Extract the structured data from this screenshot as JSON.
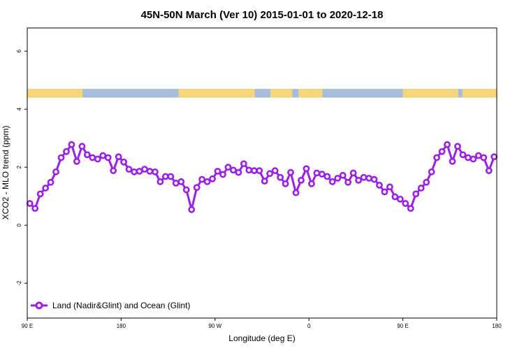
{
  "chart_data": {
    "type": "line",
    "title": "45N-50N March (Ver 10)   2015-01-01 to 2020-12-18",
    "xlabel": "Longitude (deg E)",
    "ylabel": "XCO2 - MLO trend (ppm)",
    "x_ticks": [
      {
        "value": 90,
        "label": "90 E"
      },
      {
        "value": 180,
        "label": "180"
      },
      {
        "value": 270,
        "label": "90 W"
      },
      {
        "value": 360,
        "label": "0"
      },
      {
        "value": 450,
        "label": "90 E"
      },
      {
        "value": 540,
        "label": "180"
      }
    ],
    "y_ticks": [
      {
        "value": -2,
        "label": "-2"
      },
      {
        "value": 0,
        "label": "0"
      },
      {
        "value": 2,
        "label": "2"
      },
      {
        "value": 4,
        "label": "4"
      },
      {
        "value": 6,
        "label": "6"
      }
    ],
    "xlim": [
      90,
      540
    ],
    "ylim": [
      -3.2,
      6.8
    ],
    "map_band": {
      "y_range": [
        4.4,
        4.7
      ],
      "land_color": "#f4d77a",
      "ocean_color": "#a7bcd9",
      "land_lon_ranges": [
        [
          90,
          143
        ],
        [
          235,
          308
        ],
        [
          323,
          344
        ],
        [
          350,
          360
        ],
        [
          360,
          373
        ],
        [
          450,
          503
        ],
        [
          507,
          540
        ]
      ]
    },
    "series": [
      {
        "name": "Land (Nadir&Glint) and Ocean (Glint)",
        "color": "#9a20e6",
        "x": [
          92.5,
          97.5,
          102.5,
          107.5,
          112.5,
          117.5,
          122.5,
          127.5,
          132.5,
          137.5,
          142.5,
          147.5,
          152.5,
          157.5,
          162.5,
          167.5,
          172.5,
          177.5,
          182.5,
          187.5,
          192.5,
          197.5,
          202.5,
          207.5,
          212.5,
          217.5,
          222.5,
          227.5,
          232.5,
          237.5,
          242.5,
          247.5,
          252.5,
          257.5,
          262.5,
          267.5,
          272.5,
          277.5,
          282.5,
          287.5,
          292.5,
          297.5,
          302.5,
          307.5,
          312.5,
          317.5,
          322.5,
          327.5,
          332.5,
          337.5,
          342.5,
          347.5,
          352.5,
          357.5,
          362.5,
          367.5,
          372.5,
          377.5,
          382.5,
          387.5,
          392.5,
          397.5,
          402.5,
          407.5,
          412.5,
          417.5,
          422.5,
          427.5,
          432.5,
          437.5,
          442.5,
          447.5,
          452.5,
          457.5,
          462.5,
          467.5,
          472.5,
          477.5,
          482.5,
          487.5,
          492.5,
          497.5,
          502.5,
          507.5,
          512.5,
          517.5,
          522.5,
          527.5,
          532.5,
          537.5
        ],
        "y": [
          0.75,
          0.58,
          1.08,
          1.28,
          1.48,
          1.84,
          2.33,
          2.54,
          2.78,
          2.2,
          2.72,
          2.43,
          2.33,
          2.28,
          2.4,
          2.33,
          1.88,
          2.36,
          2.18,
          1.93,
          1.84,
          1.86,
          1.93,
          1.86,
          1.84,
          1.5,
          1.68,
          1.68,
          1.45,
          1.5,
          1.22,
          0.54,
          1.3,
          1.58,
          1.5,
          1.6,
          1.86,
          1.75,
          2.0,
          1.9,
          1.82,
          2.12,
          1.9,
          1.88,
          1.88,
          1.52,
          1.78,
          1.88,
          1.65,
          1.43,
          1.82,
          1.12,
          1.55,
          1.95,
          1.43,
          1.8,
          1.76,
          1.68,
          1.5,
          1.62,
          1.72,
          1.48,
          1.8,
          1.55,
          1.65,
          1.62,
          1.58,
          1.38,
          1.15,
          1.32,
          0.98,
          0.9,
          0.75,
          0.58,
          1.08,
          1.28,
          1.48,
          1.84,
          2.33,
          2.54,
          2.78,
          2.2,
          2.72,
          2.43,
          2.33,
          2.28,
          2.4,
          2.33,
          1.88,
          2.36
        ]
      }
    ],
    "legend_position": "bottom-left",
    "grid": false
  }
}
